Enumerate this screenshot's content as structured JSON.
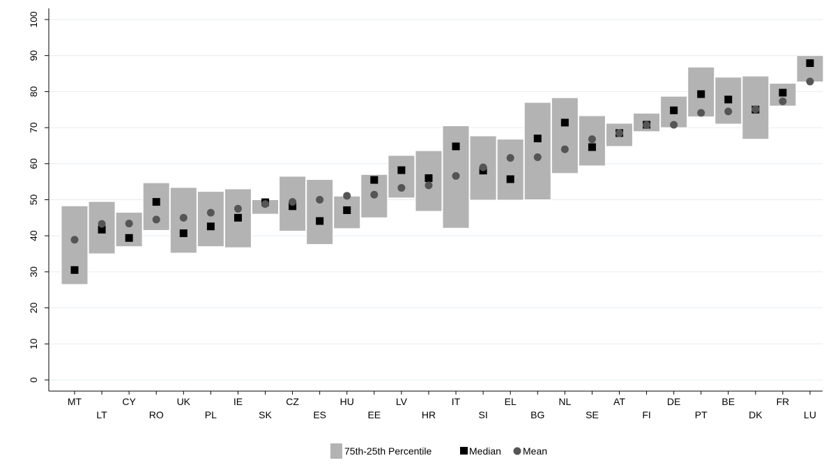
{
  "chart_data": {
    "type": "box",
    "categories": [
      "MT",
      "LT",
      "CY",
      "RO",
      "UK",
      "PL",
      "IE",
      "SK",
      "CZ",
      "ES",
      "HU",
      "EE",
      "LV",
      "HR",
      "IT",
      "SI",
      "EL",
      "BG",
      "NL",
      "SE",
      "AT",
      "FI",
      "DE",
      "PT",
      "BE",
      "DK",
      "FR",
      "LU"
    ],
    "series": [
      {
        "name": "75th-25th Percentile",
        "p25": [
          26.5,
          35,
          37,
          41.5,
          35.2,
          37,
          36.7,
          46,
          41.3,
          37.6,
          42,
          45,
          50.5,
          46.8,
          42.1,
          49.9,
          49.9,
          50,
          57.3,
          59.4,
          64.8,
          68.9,
          70,
          73,
          71,
          66.8,
          76,
          82.7
        ],
        "p75": [
          48.3,
          49.5,
          46.5,
          54.7,
          53.4,
          52.3,
          53,
          50,
          56.5,
          55.6,
          51,
          57,
          62.3,
          63.6,
          70.5,
          67.7,
          66.8,
          77,
          78.3,
          73.3,
          71.2,
          74,
          78.7,
          86.8,
          84,
          84.3,
          82.3,
          90
        ]
      },
      {
        "name": "Median",
        "values": [
          30.5,
          41.7,
          39.4,
          49.4,
          40.7,
          42.6,
          45,
          49.3,
          48.2,
          44.1,
          47.1,
          55.5,
          58.2,
          56,
          64.8,
          58.1,
          55.7,
          67,
          71.4,
          64.6,
          68.5,
          70.8,
          74.8,
          79.3,
          77.8,
          75,
          79.7,
          87.9
        ],
        "color": "#000000"
      },
      {
        "name": "Mean",
        "values": [
          38.9,
          43.3,
          43.4,
          44.5,
          45,
          46.4,
          47.5,
          48.8,
          49.4,
          50,
          51.1,
          51.4,
          53.3,
          54,
          56.6,
          59,
          61.6,
          61.8,
          64,
          66.8,
          68.5,
          70.7,
          70.8,
          74.1,
          74.5,
          75.1,
          77.3,
          82.8
        ],
        "color": "#555555"
      }
    ],
    "box_color": "#b3b3b3",
    "ylim": [
      0,
      100
    ],
    "y_ticks": [
      0,
      10,
      20,
      30,
      40,
      50,
      60,
      70,
      80,
      90,
      100
    ],
    "grid": true,
    "legend_position": "bottom",
    "title": "",
    "xlabel": "",
    "ylabel": ""
  }
}
